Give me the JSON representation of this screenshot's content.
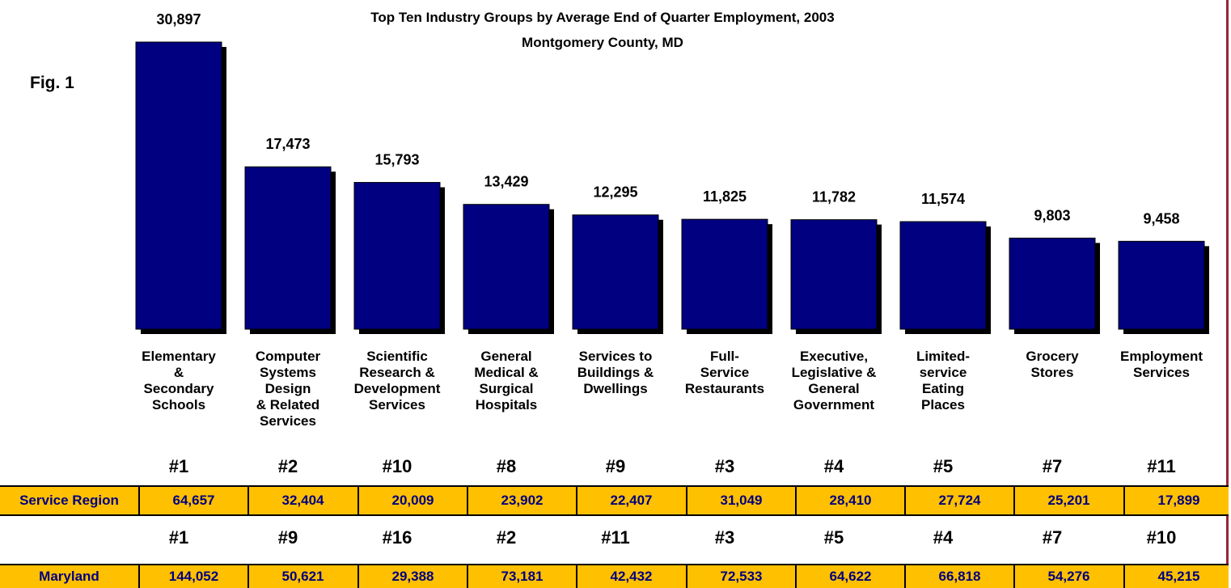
{
  "figure_label": "Fig. 1",
  "chart_data": {
    "type": "bar",
    "title": "Top Ten Industry Groups by Average End of Quarter Employment, 2003",
    "subtitle": "Montgomery County, MD",
    "categories": [
      "Elementary & Secondary Schools",
      "Computer Systems Design & Related Services",
      "Scientific Research & Development Services",
      "General Medical & Surgical Hospitals",
      "Services to Buildings & Dwellings",
      "Full-Service Restaurants",
      "Executive, Legislative & General Government",
      "Limited-service Eating Places",
      "Grocery Stores",
      "Employment Services"
    ],
    "category_label_lines": [
      [
        "Elementary",
        "&",
        "Secondary",
        "Schools"
      ],
      [
        "Computer",
        "Systems",
        "Design",
        "& Related",
        "Services"
      ],
      [
        "Scientific",
        "Research &",
        "Development",
        "Services"
      ],
      [
        "General",
        "Medical &",
        "Surgical",
        "Hospitals"
      ],
      [
        "Services to",
        "Buildings &",
        "Dwellings"
      ],
      [
        "Full-",
        "Service",
        "Restaurants"
      ],
      [
        "Executive,",
        "Legislative &",
        "General",
        "Government"
      ],
      [
        "Limited-",
        "service",
        "Eating",
        "Places"
      ],
      [
        "Grocery",
        "Stores"
      ],
      [
        "Employment",
        "Services"
      ]
    ],
    "values": [
      30897,
      17473,
      15793,
      13429,
      12295,
      11825,
      11782,
      11574,
      9803,
      9458
    ],
    "value_labels": [
      "30,897",
      "17,473",
      "15,793",
      "13,429",
      "12,295",
      "11,825",
      "11,782",
      "11,574",
      "9,803",
      "9,458"
    ],
    "ylim": [
      0,
      30897
    ],
    "bar_color": "#000080",
    "shadow_color": "#000000"
  },
  "table": {
    "service_region": {
      "label": "Service Region",
      "ranks": [
        "#1",
        "#2",
        "#10",
        "#8",
        "#9",
        "#3",
        "#4",
        "#5",
        "#7",
        "#11"
      ],
      "values": [
        "64,657",
        "32,404",
        "20,009",
        "23,902",
        "22,407",
        "31,049",
        "28,410",
        "27,724",
        "25,201",
        "17,899"
      ]
    },
    "maryland": {
      "label": "Maryland",
      "ranks": [
        "#1",
        "#9",
        "#16",
        "#2",
        "#11",
        "#3",
        "#5",
        "#4",
        "#7",
        "#10"
      ],
      "values": [
        "144,052",
        "50,621",
        "29,388",
        "73,181",
        "42,432",
        "72,533",
        "64,622",
        "66,818",
        "54,276",
        "45,215"
      ]
    },
    "band_color": "#ffc000",
    "text_color": "#000080"
  }
}
